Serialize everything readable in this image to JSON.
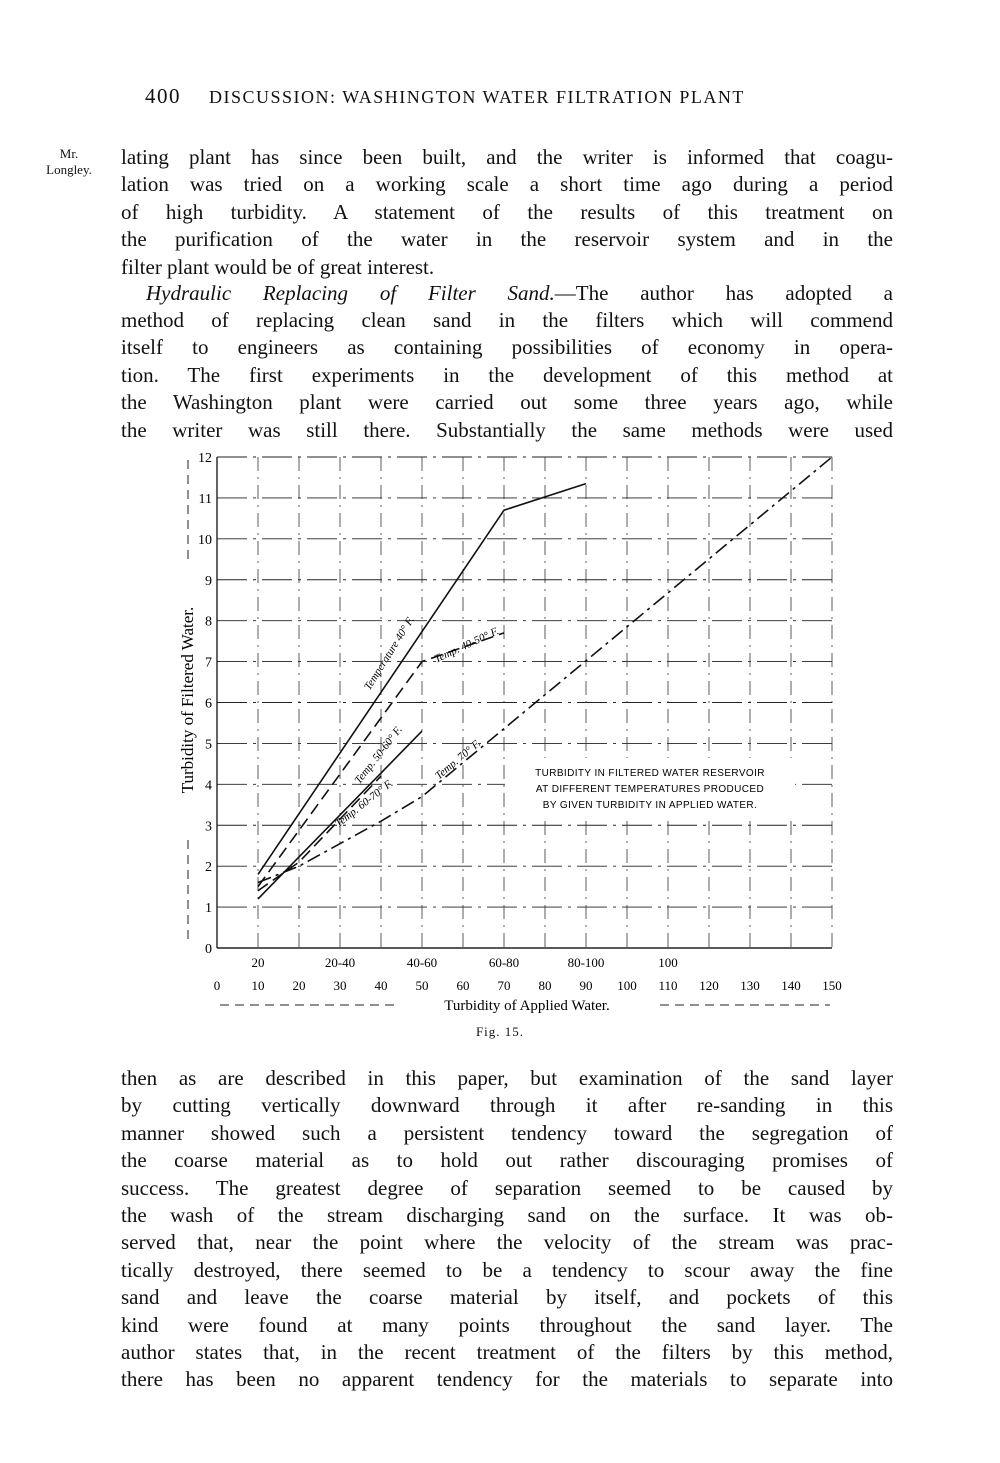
{
  "header": {
    "page_number": "400",
    "running_title": "DISCUSSION: WASHINGTON WATER FILTRATION PLANT"
  },
  "margin_note": [
    "Mr.",
    "Longley."
  ],
  "text_before": [
    "lating plant has since been built, and the writer is informed that coagu-",
    "lation was tried on a working scale a short time ago during a period",
    "of high turbidity.  A statement of the results of this treatment on",
    "the purification of the water in the reservoir system and in the",
    "filter plant would be of great interest."
  ],
  "section": {
    "heading": "Hydraulic Replacing of Filter Sand.",
    "lines": [
      "—The author has adopted a",
      "method of replacing clean sand in the filters which will commend",
      "itself to engineers as containing possibilities of economy in opera-",
      "tion.  The first experiments in the development of this method at",
      "the Washington plant were carried out some three years ago, while",
      "the writer was still there.  Substantially the same methods were used"
    ]
  },
  "chart_data": {
    "type": "line",
    "title": "TURBIDITY IN FILTERED WATER RESERVOIR AT DIFFERENT TEMPERATURES PRODUCED BY GIVEN TURBIDITY IN APPLIED WATER.",
    "title_lines": [
      "TURBIDITY IN FILTERED WATER RESERVOIR",
      "AT DIFFERENT TEMPERATURES PRODUCED",
      "BY GIVEN TURBIDITY IN APPLIED WATER."
    ],
    "xlabel": "Turbidity of Applied Water.",
    "ylabel": "Turbidity of Filtered Water.",
    "xlim": [
      0,
      150
    ],
    "ylim": [
      0,
      12
    ],
    "grid": true,
    "x_ticks": [
      "0",
      "10",
      "20",
      "30",
      "40",
      "50",
      "60",
      "70",
      "80",
      "90",
      "100",
      "110",
      "120",
      "130",
      "140",
      "150"
    ],
    "x_secondary_ticks": [
      {
        "x": 10,
        "label": "20"
      },
      {
        "x": 30,
        "label": "20-40"
      },
      {
        "x": 50,
        "label": "40-60"
      },
      {
        "x": 70,
        "label": "60-80"
      },
      {
        "x": 90,
        "label": "80-100"
      },
      {
        "x": 110,
        "label": "100"
      }
    ],
    "y_ticks": [
      "0",
      "1",
      "2",
      "3",
      "4",
      "5",
      "6",
      "7",
      "8",
      "9",
      "10",
      "11",
      "12"
    ],
    "series": [
      {
        "name": "Temperature 40° F.",
        "style": "solid",
        "points": [
          [
            10,
            1.8
          ],
          [
            70,
            10.7
          ],
          [
            90,
            11.35
          ]
        ]
      },
      {
        "name": "Temp. 40-50° F.",
        "style": "dashed",
        "points": [
          [
            10,
            1.5
          ],
          [
            50,
            7.0
          ],
          [
            70,
            7.7
          ]
        ]
      },
      {
        "name": "Temp. 50-60° F.",
        "style": "solid",
        "points": [
          [
            10,
            1.2
          ],
          [
            50,
            5.3
          ]
        ]
      },
      {
        "name": "Temp. 60-70° F.",
        "style": "dashed",
        "points": [
          [
            10,
            1.4
          ],
          [
            20,
            2.1
          ],
          [
            40,
            4.2
          ]
        ]
      },
      {
        "name": "Temp. 70° F.",
        "style": "dashdot",
        "points": [
          [
            10,
            1.6
          ],
          [
            20,
            2.0
          ],
          [
            40,
            3.1
          ],
          [
            50,
            3.7
          ],
          [
            150,
            12
          ]
        ]
      }
    ],
    "caption": "Fig. 15."
  },
  "text_after": [
    "then as are described in this paper, but examination of the sand layer",
    "by cutting vertically downward through it after re-sanding in this",
    "manner showed such a persistent tendency toward the segregation of",
    "the coarse material as to hold out rather discouraging promises of",
    "success.  The greatest degree of separation seemed to be caused by",
    "the wash of the stream discharging sand on the surface.  It was ob-",
    "served that, near the point where the velocity of the stream was prac-",
    "tically destroyed, there seemed to be a tendency to scour away the fine",
    "sand and leave the coarse material by itself, and pockets of this",
    "kind were found at many points throughout the sand layer.  The",
    "author states that, in the recent treatment of the filters by this method,",
    "there has been no apparent tendency for the materials to separate into"
  ]
}
